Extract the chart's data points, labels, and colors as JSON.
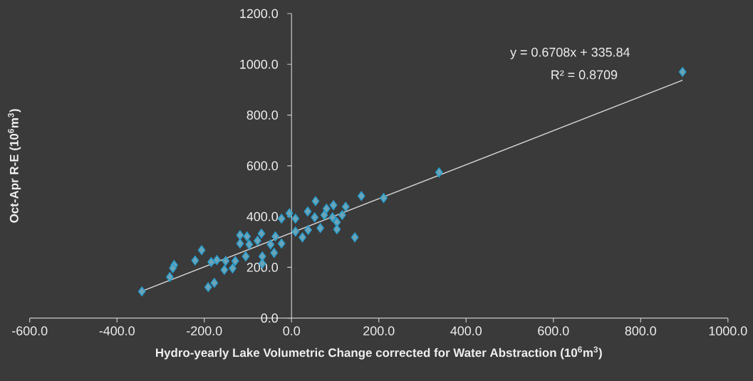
{
  "chart_data": {
    "type": "scatter",
    "xlabel": "Hydro-yearly Lake Volumetric Change corrected for Water Abstraction (10$^{6}$m$^{3}$)",
    "ylabel": "Oct-Apr R-E (10$^{6}$m$^{3}$)",
    "annotations": [
      "y = 0.6708x + 335.84",
      "R² = 0.8709"
    ],
    "xlim": [
      -600,
      1000
    ],
    "ylim": [
      0,
      1200
    ],
    "xticks": [
      {
        "value": -600,
        "label": "-600.0"
      },
      {
        "value": -400,
        "label": "-400.0"
      },
      {
        "value": -200,
        "label": "-200.0"
      },
      {
        "value": 0,
        "label": "0.0"
      },
      {
        "value": 200,
        "label": "200.0"
      },
      {
        "value": 400,
        "label": "400.0"
      },
      {
        "value": 600,
        "label": "600.0"
      },
      {
        "value": 800,
        "label": "800.0"
      },
      {
        "value": 1000,
        "label": "1000.0"
      }
    ],
    "yticks": [
      {
        "value": 0,
        "label": "0.0"
      },
      {
        "value": 200,
        "label": "200.0"
      },
      {
        "value": 400,
        "label": "400.0"
      },
      {
        "value": 600,
        "label": "600.0"
      },
      {
        "value": 800,
        "label": "800.0"
      },
      {
        "value": 1000,
        "label": "1000.0"
      },
      {
        "value": 1200,
        "label": "1200.0"
      }
    ],
    "marker": "diamond",
    "series": [
      {
        "color": "#6fa3b5",
        "x": [
          -343,
          -279,
          -269,
          -272,
          -221,
          -206,
          -191,
          -177,
          -184,
          -171,
          -151,
          -154,
          -135,
          -129,
          -118,
          -118,
          -102,
          -97,
          -105,
          -69,
          -78,
          -67,
          -67,
          -48,
          -37,
          -23,
          -40,
          -23,
          -5,
          9,
          9,
          55,
          160,
          211,
          37,
          80,
          96,
          124,
          53,
          75,
          94,
          116,
          104,
          25,
          38,
          66,
          104,
          145,
          338,
          896
        ],
        "values": [
          105,
          162,
          209,
          197,
          227,
          268,
          122,
          139,
          221,
          229,
          225,
          190,
          196,
          225,
          327,
          294,
          322,
          290,
          243,
          333,
          305,
          243,
          215,
          290,
          322,
          294,
          257,
          392,
          413,
          392,
          341,
          461,
          481,
          473,
          420,
          431,
          445,
          439,
          397,
          406,
          397,
          406,
          378,
          318,
          347,
          355,
          350,
          318,
          574,
          970
        ]
      },
      {
        "type": "line",
        "color": "#d9d9d9",
        "marker": "none",
        "x": [
          -343,
          896
        ],
        "values": [
          106,
          937
        ]
      }
    ]
  }
}
